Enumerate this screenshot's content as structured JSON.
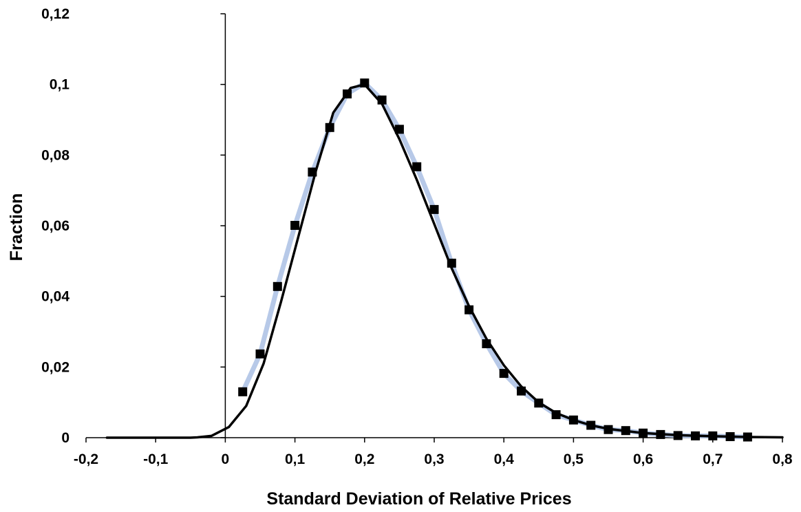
{
  "chart_data": {
    "type": "line",
    "title": "",
    "xlabel": "Standard Deviation of Relative Prices",
    "ylabel": "Fraction",
    "xlim": [
      -0.2,
      0.8
    ],
    "ylim": [
      0,
      0.12
    ],
    "x_ticks": [
      -0.2,
      -0.1,
      0,
      0.1,
      0.2,
      0.3,
      0.4,
      0.5,
      0.6,
      0.7,
      0.8
    ],
    "x_tick_labels": [
      "-0,2",
      "-0,1",
      "0",
      "0,1",
      "0,2",
      "0,3",
      "0,4",
      "0,5",
      "0,6",
      "0,7",
      "0,8"
    ],
    "y_ticks": [
      0,
      0.02,
      0.04,
      0.06,
      0.08,
      0.1,
      0.12
    ],
    "y_tick_labels": [
      "0",
      "0,02",
      "0,04",
      "0,06",
      "0,08",
      "0,1",
      "0,12"
    ],
    "grid": false,
    "legend": "none",
    "series": [
      {
        "style": "markers-with-line",
        "marker": "square",
        "marker_color": "#000000",
        "line_color": "#b7c9e8",
        "x": [
          0.025,
          0.05,
          0.075,
          0.1,
          0.125,
          0.15,
          0.175,
          0.2,
          0.225,
          0.25,
          0.275,
          0.3,
          0.325,
          0.35,
          0.375,
          0.4,
          0.425,
          0.45,
          0.475,
          0.5,
          0.525,
          0.55,
          0.575,
          0.6,
          0.625,
          0.65,
          0.675,
          0.7,
          0.725,
          0.75
        ],
        "values": [
          0.013,
          0.0237,
          0.0428,
          0.0601,
          0.0752,
          0.0878,
          0.0973,
          0.1004,
          0.0956,
          0.0873,
          0.0767,
          0.0646,
          0.0494,
          0.0362,
          0.0266,
          0.0182,
          0.0132,
          0.0098,
          0.0065,
          0.005,
          0.0035,
          0.0023,
          0.002,
          0.0013,
          0.0009,
          0.0006,
          0.0005,
          0.0005,
          0.0003,
          0.0002
        ]
      },
      {
        "style": "line",
        "line_color": "#000000",
        "x": [
          -0.17,
          -0.15,
          -0.1,
          -0.05,
          -0.04,
          -0.02,
          0.005,
          0.03,
          0.055,
          0.08,
          0.105,
          0.13,
          0.155,
          0.18,
          0.2,
          0.225,
          0.25,
          0.275,
          0.3,
          0.325,
          0.35,
          0.375,
          0.4,
          0.425,
          0.45,
          0.475,
          0.5,
          0.525,
          0.55,
          0.6,
          0.65,
          0.7,
          0.75,
          0.8
        ],
        "values": [
          0,
          0,
          0,
          0,
          0.0001,
          0.0005,
          0.003,
          0.009,
          0.021,
          0.0385,
          0.057,
          0.0755,
          0.092,
          0.099,
          0.1,
          0.0945,
          0.0845,
          0.073,
          0.0605,
          0.048,
          0.0372,
          0.028,
          0.0205,
          0.0145,
          0.01,
          0.007,
          0.005,
          0.0035,
          0.0025,
          0.0013,
          0.0007,
          0.0004,
          0.0002,
          0.0001
        ]
      }
    ]
  }
}
